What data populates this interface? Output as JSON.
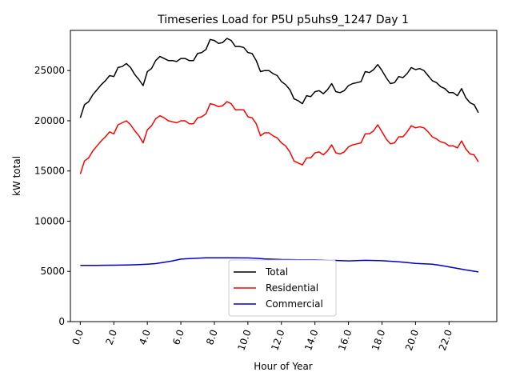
{
  "chart_data": {
    "type": "line",
    "title": "Timeseries Load for P5U p5uhs9_1247  Day 1",
    "xlabel": "Hour of Year",
    "ylabel": "kW total",
    "xlim": [
      -0.59,
      24.85
    ],
    "ylim": [
      0,
      29000
    ],
    "x_ticks": [
      0,
      2,
      4,
      6,
      8,
      10,
      12,
      14,
      16,
      18,
      20,
      22
    ],
    "x_tick_labels": [
      "0.0",
      "2.0",
      "4.0",
      "6.0",
      "8.0",
      "10.0",
      "12.0",
      "14.0",
      "16.0",
      "18.0",
      "20.0",
      "22.0"
    ],
    "y_ticks": [
      0,
      5000,
      10000,
      15000,
      20000,
      25000
    ],
    "y_tick_labels": [
      "0",
      "5000",
      "10000",
      "15000",
      "20000",
      "25000"
    ],
    "grid": false,
    "legend_position": "bottom-center",
    "series": [
      {
        "name": "Total",
        "color": "#000000",
        "points": [
          [
            0.0,
            20300
          ],
          [
            0.25,
            21600
          ],
          [
            0.5,
            21900
          ],
          [
            0.75,
            22600
          ],
          [
            1.0,
            23100
          ],
          [
            1.25,
            23600
          ],
          [
            1.5,
            24000
          ],
          [
            1.75,
            24500
          ],
          [
            2.0,
            24400
          ],
          [
            2.25,
            25300
          ],
          [
            2.5,
            25400
          ],
          [
            2.75,
            25700
          ],
          [
            3.0,
            25300
          ],
          [
            3.25,
            24600
          ],
          [
            3.5,
            24100
          ],
          [
            3.75,
            23500
          ],
          [
            4.0,
            24900
          ],
          [
            4.25,
            25200
          ],
          [
            4.5,
            26000
          ],
          [
            4.75,
            26400
          ],
          [
            5.0,
            26200
          ],
          [
            5.25,
            26000
          ],
          [
            5.5,
            26000
          ],
          [
            5.75,
            25900
          ],
          [
            6.0,
            26200
          ],
          [
            6.25,
            26200
          ],
          [
            6.5,
            26000
          ],
          [
            6.75,
            26000
          ],
          [
            7.0,
            26700
          ],
          [
            7.25,
            26800
          ],
          [
            7.5,
            27100
          ],
          [
            7.75,
            28100
          ],
          [
            8.0,
            28000
          ],
          [
            8.25,
            27700
          ],
          [
            8.5,
            27800
          ],
          [
            8.75,
            28200
          ],
          [
            9.0,
            28000
          ],
          [
            9.25,
            27400
          ],
          [
            9.5,
            27400
          ],
          [
            9.75,
            27300
          ],
          [
            10.0,
            26800
          ],
          [
            10.25,
            26700
          ],
          [
            10.5,
            26000
          ],
          [
            10.75,
            24900
          ],
          [
            11.0,
            25000
          ],
          [
            11.25,
            25000
          ],
          [
            11.5,
            24700
          ],
          [
            11.75,
            24500
          ],
          [
            12.0,
            23900
          ],
          [
            12.25,
            23600
          ],
          [
            12.5,
            23100
          ],
          [
            12.75,
            22200
          ],
          [
            13.0,
            22000
          ],
          [
            13.25,
            21700
          ],
          [
            13.5,
            22500
          ],
          [
            13.75,
            22400
          ],
          [
            14.0,
            22900
          ],
          [
            14.25,
            23000
          ],
          [
            14.5,
            22700
          ],
          [
            14.75,
            23100
          ],
          [
            15.0,
            23700
          ],
          [
            15.25,
            22900
          ],
          [
            15.5,
            22800
          ],
          [
            15.75,
            23000
          ],
          [
            16.0,
            23500
          ],
          [
            16.25,
            23700
          ],
          [
            16.5,
            23800
          ],
          [
            16.75,
            23900
          ],
          [
            17.0,
            24900
          ],
          [
            17.25,
            24800
          ],
          [
            17.5,
            25100
          ],
          [
            17.75,
            25600
          ],
          [
            18.0,
            25000
          ],
          [
            18.25,
            24300
          ],
          [
            18.5,
            23700
          ],
          [
            18.75,
            23800
          ],
          [
            19.0,
            24400
          ],
          [
            19.25,
            24300
          ],
          [
            19.5,
            24700
          ],
          [
            19.75,
            25300
          ],
          [
            20.0,
            25100
          ],
          [
            20.25,
            25200
          ],
          [
            20.5,
            25000
          ],
          [
            20.75,
            24500
          ],
          [
            21.0,
            24000
          ],
          [
            21.25,
            23800
          ],
          [
            21.5,
            23400
          ],
          [
            21.75,
            23200
          ],
          [
            22.0,
            22800
          ],
          [
            22.25,
            22800
          ],
          [
            22.5,
            22500
          ],
          [
            22.75,
            23200
          ],
          [
            23.0,
            22300
          ],
          [
            23.25,
            21800
          ],
          [
            23.5,
            21600
          ],
          [
            23.75,
            20800
          ]
        ]
      },
      {
        "name": "Residential",
        "color": "#ff0000",
        "points": [
          [
            0.0,
            14700
          ],
          [
            0.25,
            16000
          ],
          [
            0.5,
            16300
          ],
          [
            0.75,
            17000
          ],
          [
            1.0,
            17500
          ],
          [
            1.25,
            18000
          ],
          [
            1.5,
            18400
          ],
          [
            1.75,
            18900
          ],
          [
            2.0,
            18700
          ],
          [
            2.25,
            19600
          ],
          [
            2.5,
            19800
          ],
          [
            2.75,
            20000
          ],
          [
            3.0,
            19600
          ],
          [
            3.25,
            19000
          ],
          [
            3.5,
            18500
          ],
          [
            3.75,
            17800
          ],
          [
            4.0,
            19100
          ],
          [
            4.25,
            19500
          ],
          [
            4.5,
            20200
          ],
          [
            4.75,
            20500
          ],
          [
            5.0,
            20300
          ],
          [
            5.25,
            20000
          ],
          [
            5.5,
            19900
          ],
          [
            5.75,
            19800
          ],
          [
            6.0,
            20000
          ],
          [
            6.25,
            20000
          ],
          [
            6.5,
            19700
          ],
          [
            6.75,
            19700
          ],
          [
            7.0,
            20300
          ],
          [
            7.25,
            20400
          ],
          [
            7.5,
            20700
          ],
          [
            7.75,
            21700
          ],
          [
            8.0,
            21600
          ],
          [
            8.25,
            21400
          ],
          [
            8.5,
            21500
          ],
          [
            8.75,
            21900
          ],
          [
            9.0,
            21700
          ],
          [
            9.25,
            21100
          ],
          [
            9.5,
            21100
          ],
          [
            9.75,
            21100
          ],
          [
            10.0,
            20400
          ],
          [
            10.25,
            20300
          ],
          [
            10.5,
            19700
          ],
          [
            10.75,
            18500
          ],
          [
            11.0,
            18800
          ],
          [
            11.25,
            18800
          ],
          [
            11.5,
            18500
          ],
          [
            11.75,
            18300
          ],
          [
            12.0,
            17800
          ],
          [
            12.25,
            17500
          ],
          [
            12.5,
            16900
          ],
          [
            12.75,
            16000
          ],
          [
            13.0,
            15800
          ],
          [
            13.25,
            15600
          ],
          [
            13.5,
            16300
          ],
          [
            13.75,
            16300
          ],
          [
            14.0,
            16800
          ],
          [
            14.25,
            16900
          ],
          [
            14.5,
            16600
          ],
          [
            14.75,
            17000
          ],
          [
            15.0,
            17600
          ],
          [
            15.25,
            16800
          ],
          [
            15.5,
            16700
          ],
          [
            15.75,
            16900
          ],
          [
            16.0,
            17400
          ],
          [
            16.25,
            17600
          ],
          [
            16.5,
            17700
          ],
          [
            16.75,
            17800
          ],
          [
            17.0,
            18700
          ],
          [
            17.25,
            18700
          ],
          [
            17.5,
            19000
          ],
          [
            17.75,
            19600
          ],
          [
            18.0,
            18900
          ],
          [
            18.25,
            18200
          ],
          [
            18.5,
            17700
          ],
          [
            18.75,
            17800
          ],
          [
            19.0,
            18400
          ],
          [
            19.25,
            18400
          ],
          [
            19.5,
            18900
          ],
          [
            19.75,
            19500
          ],
          [
            20.0,
            19300
          ],
          [
            20.25,
            19400
          ],
          [
            20.5,
            19300
          ],
          [
            20.75,
            18900
          ],
          [
            21.0,
            18400
          ],
          [
            21.25,
            18200
          ],
          [
            21.5,
            17900
          ],
          [
            21.75,
            17800
          ],
          [
            22.0,
            17500
          ],
          [
            22.25,
            17500
          ],
          [
            22.5,
            17300
          ],
          [
            22.75,
            18000
          ],
          [
            23.0,
            17200
          ],
          [
            23.25,
            16700
          ],
          [
            23.5,
            16600
          ],
          [
            23.75,
            15900
          ]
        ]
      },
      {
        "name": "Commercial",
        "color": "#0000cc",
        "points": [
          [
            0.0,
            5600
          ],
          [
            1.0,
            5600
          ],
          [
            2.0,
            5620
          ],
          [
            3.0,
            5650
          ],
          [
            3.5,
            5680
          ],
          [
            4.0,
            5720
          ],
          [
            4.5,
            5780
          ],
          [
            5.0,
            5900
          ],
          [
            5.5,
            6050
          ],
          [
            6.0,
            6220
          ],
          [
            6.5,
            6280
          ],
          [
            7.0,
            6320
          ],
          [
            7.5,
            6350
          ],
          [
            8.0,
            6360
          ],
          [
            9.0,
            6350
          ],
          [
            10.0,
            6340
          ],
          [
            10.5,
            6300
          ],
          [
            11.0,
            6250
          ],
          [
            12.0,
            6180
          ],
          [
            13.0,
            6160
          ],
          [
            14.0,
            6150
          ],
          [
            15.0,
            6100
          ],
          [
            16.0,
            6050
          ],
          [
            17.0,
            6100
          ],
          [
            18.0,
            6060
          ],
          [
            19.0,
            5950
          ],
          [
            20.0,
            5800
          ],
          [
            21.0,
            5720
          ],
          [
            21.5,
            5600
          ],
          [
            22.0,
            5450
          ],
          [
            22.5,
            5300
          ],
          [
            23.0,
            5150
          ],
          [
            23.75,
            4950
          ]
        ]
      }
    ]
  }
}
